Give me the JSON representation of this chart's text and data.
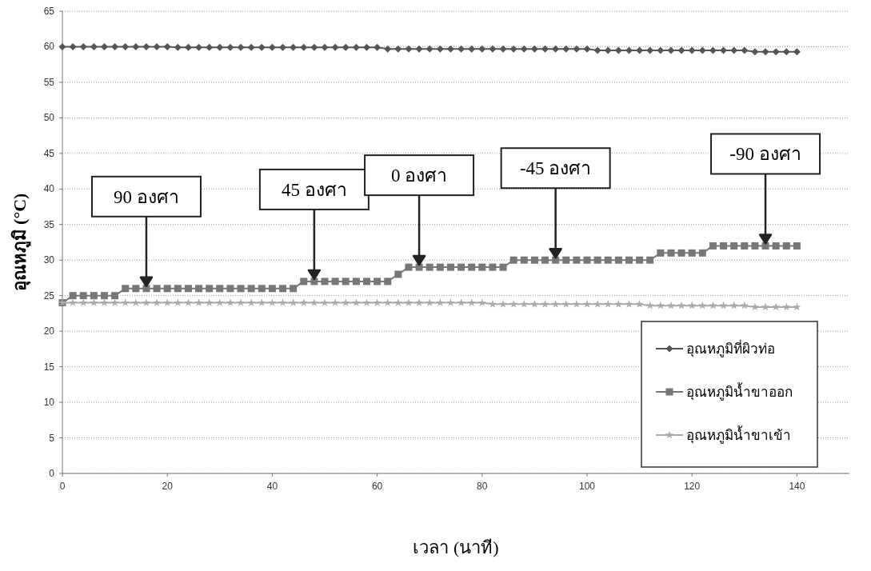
{
  "chart_data": {
    "type": "line",
    "xlabel": "เวลา (นาที)",
    "ylabel": "อุณหภูมิ (°C)",
    "x": [
      0,
      2,
      4,
      6,
      8,
      10,
      12,
      14,
      16,
      18,
      20,
      22,
      24,
      26,
      28,
      30,
      32,
      34,
      36,
      38,
      40,
      42,
      44,
      46,
      48,
      50,
      52,
      54,
      56,
      58,
      60,
      62,
      64,
      66,
      68,
      70,
      72,
      74,
      76,
      78,
      80,
      82,
      84,
      86,
      88,
      90,
      92,
      94,
      96,
      98,
      100,
      102,
      104,
      106,
      108,
      110,
      112,
      114,
      116,
      118,
      120,
      122,
      124,
      126,
      128,
      130,
      132,
      134,
      136,
      138,
      140
    ],
    "xlim": [
      0,
      150
    ],
    "xticks": [
      0,
      20,
      40,
      60,
      80,
      100,
      120,
      140
    ],
    "ylim": [
      0,
      65
    ],
    "yticks": [
      0,
      5,
      10,
      15,
      20,
      25,
      30,
      35,
      40,
      45,
      50,
      55,
      60,
      65
    ],
    "grid": "y",
    "legend": "bottom right",
    "series": [
      {
        "name": "อุณหภูมิที่ผิวท่อ",
        "color": "#555555",
        "marker": "diamond",
        "values": [
          60,
          60,
          60,
          60,
          60,
          60,
          60,
          60,
          60,
          60,
          60,
          59.9,
          59.9,
          59.9,
          59.9,
          59.9,
          59.9,
          59.9,
          59.9,
          59.9,
          59.9,
          59.9,
          59.9,
          59.9,
          59.9,
          59.9,
          59.9,
          59.9,
          59.9,
          59.9,
          59.9,
          59.7,
          59.7,
          59.7,
          59.7,
          59.7,
          59.7,
          59.7,
          59.7,
          59.7,
          59.7,
          59.7,
          59.7,
          59.7,
          59.7,
          59.7,
          59.7,
          59.7,
          59.7,
          59.7,
          59.7,
          59.5,
          59.5,
          59.5,
          59.5,
          59.5,
          59.5,
          59.5,
          59.5,
          59.5,
          59.5,
          59.5,
          59.5,
          59.5,
          59.5,
          59.5,
          59.3,
          59.3,
          59.3,
          59.3,
          59.3
        ]
      },
      {
        "name": "อุณหภูมิน้ำขาออก",
        "color": "#777777",
        "marker": "square",
        "values": [
          24,
          25,
          25,
          25,
          25,
          25,
          26,
          26,
          26,
          26,
          26,
          26,
          26,
          26,
          26,
          26,
          26,
          26,
          26,
          26,
          26,
          26,
          26,
          27,
          27,
          27,
          27,
          27,
          27,
          27,
          27,
          27,
          28,
          29,
          29,
          29,
          29,
          29,
          29,
          29,
          29,
          29,
          29,
          30,
          30,
          30,
          30,
          30,
          30,
          30,
          30,
          30,
          30,
          30,
          30,
          30,
          30,
          31,
          31,
          31,
          31,
          31,
          32,
          32,
          32,
          32,
          32,
          32,
          32,
          32,
          32
        ]
      },
      {
        "name": "อุณหภูมิน้ำขาเข้า",
        "color": "#aaaaaa",
        "marker": "star",
        "values": [
          24,
          24,
          24,
          24,
          24,
          24,
          24,
          24,
          24,
          24,
          24,
          24,
          24,
          24,
          24,
          24,
          24,
          24,
          24,
          24,
          24,
          24,
          24,
          24,
          24,
          24,
          24,
          24,
          24,
          24,
          24,
          24,
          24,
          24,
          24,
          24,
          24,
          24,
          24,
          24,
          24,
          23.8,
          23.8,
          23.8,
          23.8,
          23.8,
          23.8,
          23.8,
          23.8,
          23.8,
          23.8,
          23.8,
          23.8,
          23.8,
          23.8,
          23.8,
          23.6,
          23.6,
          23.6,
          23.6,
          23.6,
          23.6,
          23.6,
          23.6,
          23.6,
          23.6,
          23.4,
          23.4,
          23.4,
          23.4,
          23.4
        ]
      }
    ],
    "annotations": [
      {
        "text": "90 องศา",
        "x": 16,
        "y": 26
      },
      {
        "text": "45 องศา",
        "x": 48,
        "y": 27
      },
      {
        "text": "0 องศา",
        "x": 68,
        "y": 29
      },
      {
        "text": "-45 องศา",
        "x": 94,
        "y": 30
      },
      {
        "text": "-90 องศา",
        "x": 134,
        "y": 32
      }
    ]
  }
}
